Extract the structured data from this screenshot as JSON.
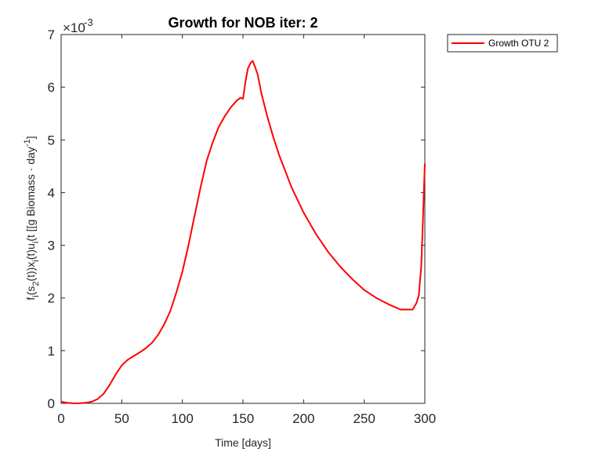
{
  "chart_data": {
    "type": "line",
    "title": "Growth for NOB iter: 2",
    "xlabel": "Time [days]",
    "ylabel": "f_i(s_2(t))x_i(t)u_i(t [[g Biomass · day^-1]",
    "ylabel_parts": {
      "f": "f",
      "i": "i",
      "open_s": "(s",
      "two": "2",
      "t1": "(t))x",
      "t2": "(t)u",
      "t3": "(t [[g Biomass · day",
      "exp": "-1",
      "close": "]"
    },
    "y_exponent_prefix": "×10",
    "y_exponent": "-3",
    "xlim": [
      0,
      300
    ],
    "ylim": [
      0,
      7
    ],
    "xticks": [
      0,
      50,
      100,
      150,
      200,
      250,
      300
    ],
    "yticks": [
      0,
      1,
      2,
      3,
      4,
      5,
      6,
      7
    ],
    "grid": false,
    "legend_location": "outside-top-right",
    "series": [
      {
        "name": "Growth OTU 2",
        "color": "#ff0000",
        "x": [
          0,
          5,
          10,
          15,
          20,
          25,
          30,
          35,
          40,
          45,
          50,
          55,
          60,
          65,
          70,
          75,
          80,
          85,
          90,
          95,
          100,
          105,
          110,
          115,
          120,
          125,
          130,
          135,
          140,
          145,
          148,
          150,
          152,
          154,
          156,
          157,
          158,
          159,
          160,
          162,
          164,
          165,
          170,
          175,
          180,
          190,
          200,
          210,
          220,
          230,
          240,
          250,
          260,
          270,
          280,
          290,
          293,
          295,
          297,
          298,
          299,
          300
        ],
        "y": [
          0.03,
          0.01,
          0.0,
          0.0,
          0.01,
          0.03,
          0.08,
          0.18,
          0.35,
          0.55,
          0.72,
          0.83,
          0.9,
          0.97,
          1.05,
          1.15,
          1.3,
          1.5,
          1.75,
          2.1,
          2.5,
          3.0,
          3.55,
          4.1,
          4.6,
          4.95,
          5.25,
          5.45,
          5.62,
          5.75,
          5.8,
          5.78,
          6.1,
          6.35,
          6.45,
          6.48,
          6.5,
          6.44,
          6.38,
          6.25,
          6.02,
          5.9,
          5.45,
          5.05,
          4.7,
          4.1,
          3.62,
          3.22,
          2.88,
          2.6,
          2.36,
          2.15,
          2.0,
          1.88,
          1.78,
          1.78,
          1.9,
          2.05,
          2.6,
          3.2,
          3.9,
          4.55
        ]
      }
    ]
  }
}
